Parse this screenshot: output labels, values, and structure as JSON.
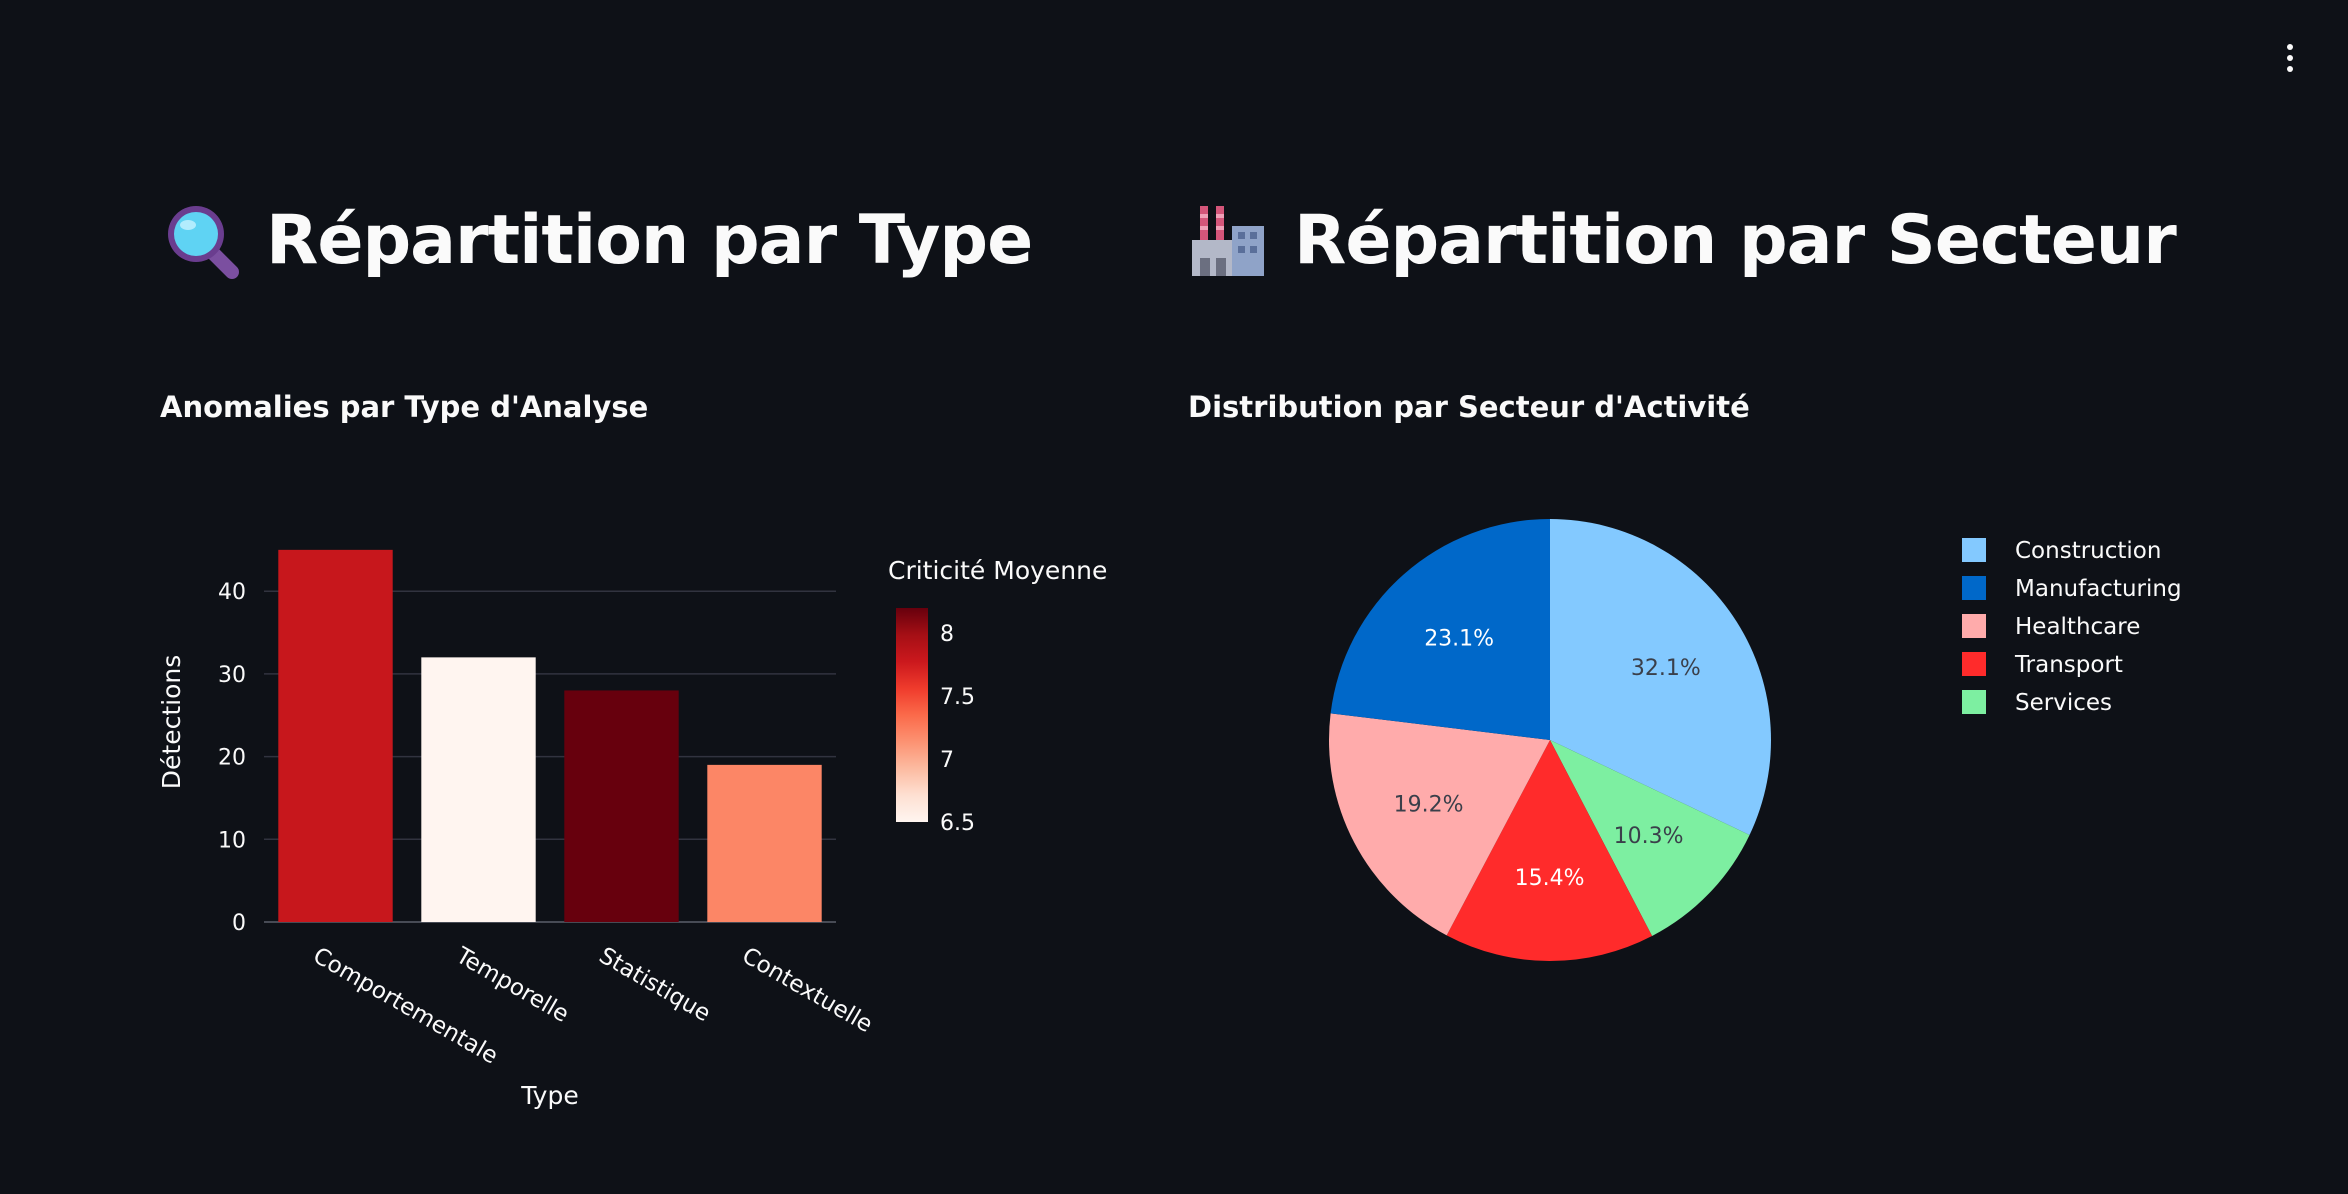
{
  "menu": {
    "icon": "kebab-menu-icon"
  },
  "left": {
    "heading": "Répartition par Type",
    "heading_icon": "magnifier-icon",
    "chart_title": "Anomalies par Type d'Analyse"
  },
  "right": {
    "heading": "Répartition par Secteur",
    "heading_icon": "factory-icon",
    "chart_title": "Distribution par Secteur d'Activité"
  },
  "chart_data": [
    {
      "type": "bar",
      "categories": [
        "Comportementale",
        "Temporelle",
        "Statistique",
        "Contextuelle"
      ],
      "values": [
        45,
        32,
        28,
        19
      ],
      "color_values": [
        7.8,
        6.5,
        8.2,
        7.2
      ],
      "xlabel": "Type",
      "ylabel": "Détections",
      "ylim": [
        0,
        47.4
      ],
      "yticks": [
        0,
        10,
        20,
        30,
        40
      ],
      "colorbar": {
        "title": "Criticité Moyenne",
        "range": [
          6.5,
          8.2
        ],
        "ticks": [
          "8",
          "7.5",
          "7",
          "6.5"
        ],
        "tick_values": [
          8,
          7.5,
          7,
          6.5
        ],
        "colors": [
          "#fff5f0",
          "#fee0d2",
          "#fcbba1",
          "#fc9272",
          "#fb6a4a",
          "#ef3b2c",
          "#cb181d",
          "#a50f15",
          "#67000d"
        ]
      },
      "grid": true
    },
    {
      "type": "pie",
      "labels": [
        "Construction",
        "Manufacturing",
        "Healthcare",
        "Transport",
        "Services"
      ],
      "values": [
        32.1,
        23.1,
        19.2,
        15.4,
        10.3
      ],
      "slice_order": [
        "Construction",
        "Services",
        "Transport",
        "Healthcare",
        "Manufacturing"
      ],
      "percent_labels": {
        "Construction": "32.1%",
        "Manufacturing": "23.1%",
        "Healthcare": "19.2%",
        "Transport": "15.4%",
        "Services": "10.3%"
      },
      "colors": {
        "Construction": "#83c9ff",
        "Manufacturing": "#0068c9",
        "Healthcare": "#ffabab",
        "Transport": "#ff2b2b",
        "Services": "#7defa1"
      },
      "label_colors": {
        "Construction": "#3a3f4a",
        "Manufacturing": "#ffffff",
        "Healthcare": "#3a3f4a",
        "Transport": "#ffffff",
        "Services": "#3a3f4a"
      },
      "legend": "right"
    }
  ]
}
